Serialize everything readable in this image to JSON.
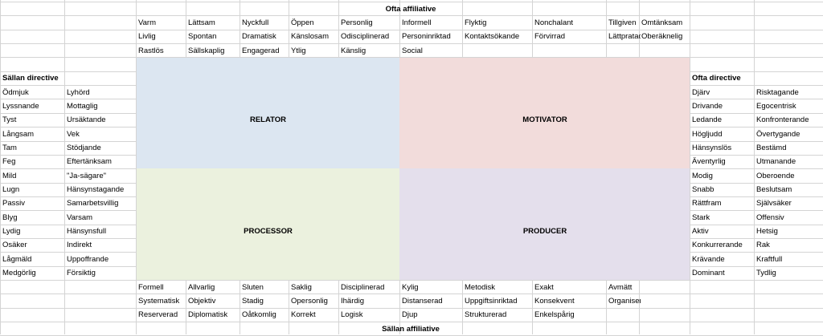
{
  "headers": {
    "top": "Ofta affiliative",
    "bottom": "Sällan affiliative",
    "left": "Sällan directive",
    "right": "Ofta directive"
  },
  "colors": {
    "relator": "#dce6f1",
    "motivator": "#f2dcdb",
    "processor": "#ebf1de",
    "producer": "#e4dfec",
    "gridline": "#d4d4d4"
  },
  "quadrants": {
    "relator": "RELATOR",
    "motivator": "MOTIVATOR",
    "processor": "PROCESSOR",
    "producer": "PRODUCER"
  },
  "top_rows": [
    [
      "Varm",
      "Lättsam",
      "Nyckfull",
      "Öppen",
      "Personlig",
      "Informell",
      "Flyktig",
      "Nonchalant",
      "Tillgiven",
      "Omtänksam"
    ],
    [
      "Livlig",
      "Spontan",
      "Dramatisk",
      "Känslosam",
      "Odisciplinerad",
      "Personinriktad",
      "Kontaktsökande",
      "Förvirrad",
      "Lättpratad",
      "Oberäknelig"
    ],
    [
      "Rastlös",
      "Sällskaplig",
      "Engagerad",
      "Ytlig",
      "Känslig",
      "Social"
    ]
  ],
  "bottom_rows": [
    [
      "Formell",
      "Allvarlig",
      "Sluten",
      "Saklig",
      "Disciplinerad",
      "Kylig",
      "Metodisk",
      "Exakt",
      "Avmätt"
    ],
    [
      "Systematisk",
      "Objektiv",
      "Stadig",
      "Opersonlig",
      "Ihärdig",
      "Distanserad",
      "Uppgiftsinriktad",
      "Konsekvent",
      "Organiserad"
    ],
    [
      "Reserverad",
      "Diplomatisk",
      "Oåtkomlig",
      "Korrekt",
      "Logisk",
      "Djup",
      "Strukturerad",
      "Enkelspårig"
    ]
  ],
  "left_rows": [
    [
      "Ödmjuk",
      "Lyhörd"
    ],
    [
      "Lyssnande",
      "Mottaglig"
    ],
    [
      "Tyst",
      "Ursäktande"
    ],
    [
      "Långsam",
      "Vek"
    ],
    [
      "Tam",
      "Stödjande"
    ],
    [
      "Feg",
      "Eftertänksam"
    ],
    [
      "Mild",
      "\"Ja-sägare\""
    ],
    [
      "Lugn",
      "Hänsynstagande"
    ],
    [
      "Passiv",
      "Samarbetsvillig"
    ],
    [
      "Blyg",
      "Varsam"
    ],
    [
      "Lydig",
      "Hänsynsfull"
    ],
    [
      "Osäker",
      "Indirekt"
    ],
    [
      "Lågmäld",
      "Uppoffrande"
    ],
    [
      "Medgörlig",
      "Försiktig"
    ]
  ],
  "right_rows": [
    [
      "Djärv",
      "Risktagande"
    ],
    [
      "Drivande",
      "Egocentrisk"
    ],
    [
      "Ledande",
      "Konfronterande"
    ],
    [
      "Högljudd",
      "Övertygande"
    ],
    [
      "Hänsynslös",
      "Bestämd"
    ],
    [
      "Äventyrlig",
      "Utmanande"
    ],
    [
      "Modig",
      "Oberoende"
    ],
    [
      "Snabb",
      "Beslutsam"
    ],
    [
      "Rättfram",
      "Självsäker"
    ],
    [
      "Stark",
      "Offensiv"
    ],
    [
      "Aktiv",
      "Hetsig"
    ],
    [
      "Konkurrerande",
      "Rak"
    ],
    [
      "Krävande",
      "Kraftfull"
    ],
    [
      "Dominant",
      "Tydlig"
    ]
  ]
}
